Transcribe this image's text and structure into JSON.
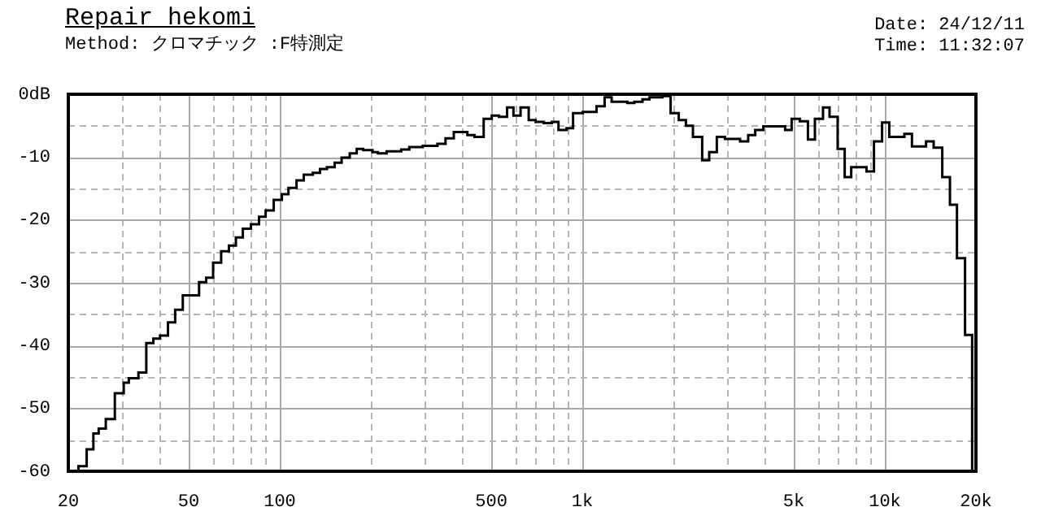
{
  "chart_data": {
    "type": "step",
    "title": "Repair hekomi",
    "subtitle": "Method: クロマチック :F特測定",
    "annotations": [
      "Date: 24/12/11",
      "Time: 11:32:07"
    ],
    "log": "x",
    "grid": true,
    "xlim": [
      20,
      20000
    ],
    "xticks": [
      20,
      {
        "value": 30,
        "label": null
      },
      {
        "value": 40,
        "label": null
      },
      50,
      {
        "value": 60,
        "label": null
      },
      {
        "value": 70,
        "label": null
      },
      {
        "value": 80,
        "label": null
      },
      {
        "value": 90,
        "label": null
      },
      100,
      {
        "value": 200,
        "label": null
      },
      {
        "value": 300,
        "label": null
      },
      {
        "value": 400,
        "label": null
      },
      500,
      {
        "value": 600,
        "label": null
      },
      {
        "value": 700,
        "label": null
      },
      {
        "value": 800,
        "label": null
      },
      {
        "value": 900,
        "label": null
      },
      {
        "value": 1000,
        "label": "1k"
      },
      {
        "value": 2000,
        "label": null
      },
      {
        "value": 3000,
        "label": null
      },
      {
        "value": 4000,
        "label": null
      },
      {
        "value": 5000,
        "label": "5k"
      },
      {
        "value": 6000,
        "label": null
      },
      {
        "value": 7000,
        "label": null
      },
      {
        "value": 8000,
        "label": null
      },
      {
        "value": 9000,
        "label": null
      },
      {
        "value": 10000,
        "label": "10k"
      },
      {
        "value": 20000,
        "label": "20k"
      }
    ],
    "ylim": [
      -60,
      0
    ],
    "yticks": [
      {
        "value": 0,
        "label": "0dB"
      },
      {
        "value": -5,
        "label": null
      },
      -10,
      {
        "value": -15,
        "label": null
      },
      -20,
      {
        "value": -25,
        "label": null
      },
      -30,
      {
        "value": -35,
        "label": null
      },
      -40,
      {
        "value": -45,
        "label": null
      },
      -50,
      {
        "value": -55,
        "label": null
      },
      -60
    ],
    "series": [
      {
        "color": "#000000",
        "x": [
          20,
          21.6,
          23.0,
          24.2,
          25.2,
          26.6,
          28.5,
          30.5,
          31.7,
          34.1,
          36.2,
          38.2,
          40.2,
          42.7,
          45.1,
          47.8,
          54.1,
          57.1,
          60.2,
          64.0,
          67.9,
          71.6,
          75.5,
          80.3,
          85.4,
          89.8,
          95.5,
          101.6,
          106.8,
          113.6,
          120,
          128.6,
          135.8,
          143.2,
          151.8,
          160.1,
          170.3,
          179.6,
          188.7,
          202.5,
          211,
          225.5,
          252,
          268,
          297,
          332,
          353,
          376,
          417,
          440,
          472,
          502,
          530,
          564,
          592,
          625,
          665,
          701,
          746,
          793,
          834,
          887,
          932,
          1004,
          1114,
          1185,
          1250,
          1409,
          1486,
          1581,
          1667,
          1841,
          1958,
          2083,
          2200,
          2321,
          2490,
          2627,
          2783,
          2960,
          3322,
          3534,
          3728,
          3965,
          4681,
          4919,
          5233,
          5568,
          5872,
          6245,
          6564,
          6982,
          7366,
          7741,
          8696,
          9204,
          9790,
          10340,
          11600,
          12290,
          13680,
          14500,
          15480,
          16410,
          17310,
          18410,
          19430
        ],
        "values": [
          -60,
          -59.2,
          -56.5,
          -54,
          -53.2,
          -51.7,
          -47.6,
          -45.9,
          -45.2,
          -44.3,
          -39.6,
          -38.9,
          -38.4,
          -36.3,
          -34.3,
          -32,
          -29.9,
          -29.2,
          -26.8,
          -25,
          -24.1,
          -22.8,
          -21.4,
          -20.7,
          -19.5,
          -18.5,
          -16.8,
          -15.9,
          -14.9,
          -13.7,
          -12.8,
          -12.5,
          -11.9,
          -11.6,
          -10.9,
          -10.1,
          -9.4,
          -8.7,
          -8.9,
          -9.2,
          -9.4,
          -9.1,
          -8.8,
          -8.4,
          -8.2,
          -7.9,
          -7.0,
          -6.0,
          -6.5,
          -6.8,
          -3.9,
          -3.4,
          -3.6,
          -2.1,
          -3.4,
          -2.1,
          -4.1,
          -4.4,
          -4.6,
          -4.4,
          -5.7,
          -5.4,
          -3.0,
          -2.8,
          -1.9,
          -0.5,
          -1.2,
          -1.4,
          -1.2,
          -0.8,
          -0.5,
          -0.3,
          -3.0,
          -4.1,
          -5.0,
          -6.8,
          -10.5,
          -9.2,
          -6.8,
          -7.1,
          -7.5,
          -6.5,
          -5.7,
          -5.1,
          -5.7,
          -3.9,
          -4.3,
          -7.2,
          -3.9,
          -2.1,
          -3.6,
          -8.7,
          -13.2,
          -11.6,
          -12.3,
          -7.5,
          -4.5,
          -6.8,
          -6.3,
          -8.3,
          -7.5,
          -8.5,
          -13.2,
          -17.6,
          -26.1,
          -38.3,
          -60
        ]
      }
    ]
  }
}
